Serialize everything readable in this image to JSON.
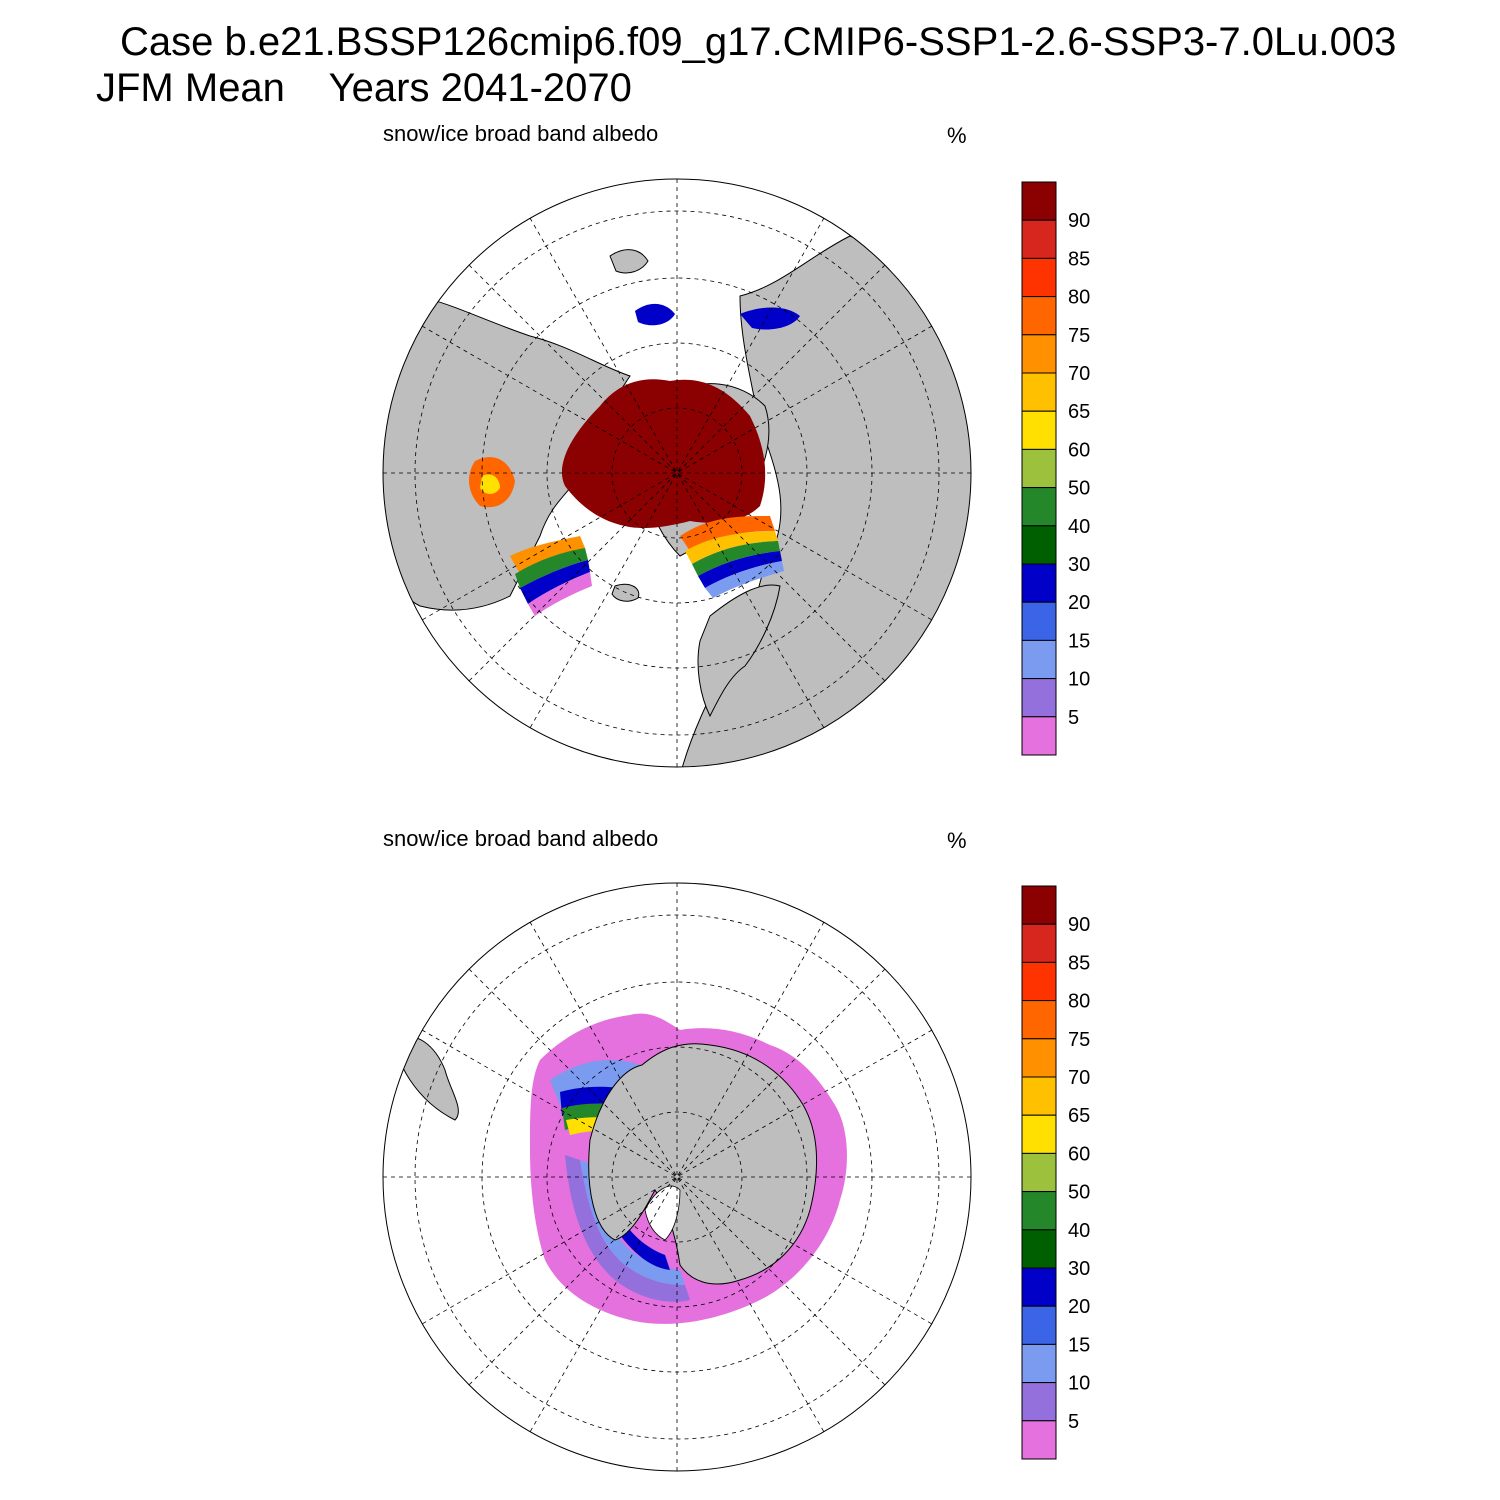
{
  "header": {
    "line1": "Case b.e21.BSSP126cmip6.f09_g17.CMIP6-SSP1-2.6-SSP3-7.0Lu.003",
    "line2": "JFM Mean    Years 2041-2070"
  },
  "panels": [
    {
      "title": "snow/ice broad band albedo",
      "unit": "%",
      "hemisphere": "north"
    },
    {
      "title": "snow/ice broad band albedo",
      "unit": "%",
      "hemisphere": "south"
    }
  ],
  "colorbar": {
    "labels": [
      "90",
      "85",
      "80",
      "75",
      "70",
      "65",
      "60",
      "50",
      "40",
      "30",
      "20",
      "15",
      "10",
      "5"
    ],
    "colors": [
      "#8b0000",
      "#d7261e",
      "#ff3300",
      "#ff6600",
      "#ff9100",
      "#ffc000",
      "#ffe000",
      "#9cc13c",
      "#24882a",
      "#005f00",
      "#0000c8",
      "#3c64e6",
      "#7b9bf0",
      "#9370db",
      "#e471dd"
    ]
  },
  "map_colors": {
    "land": "#bebebe",
    "ocean": "#ffffff",
    "grid": "#000000"
  }
}
